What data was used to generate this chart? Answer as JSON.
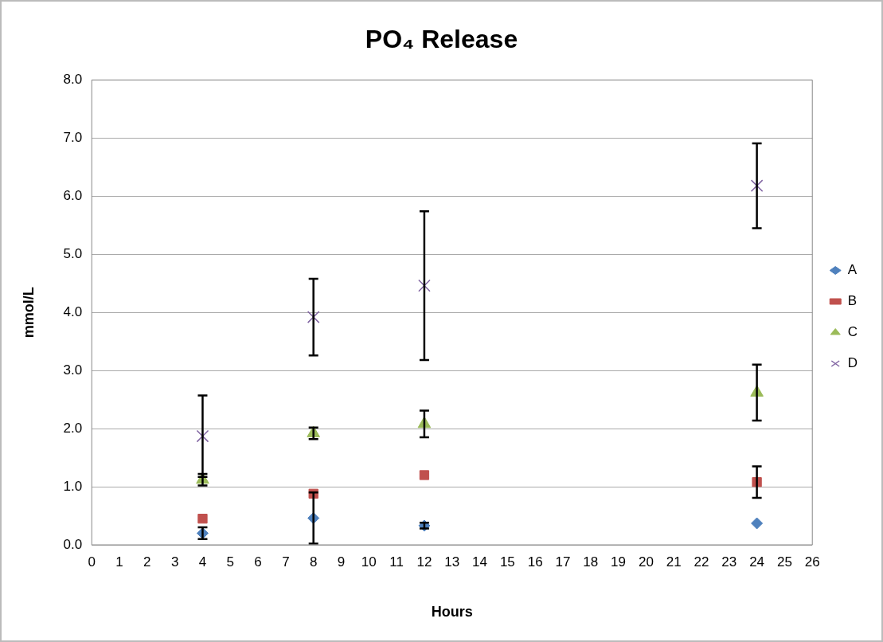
{
  "chart_data": {
    "type": "scatter",
    "title": "PO₄ Release",
    "xlabel": "Hours",
    "ylabel": "mmol/L",
    "x": [
      4,
      8,
      12,
      24
    ],
    "series": [
      {
        "name": "A",
        "color": "#4f81bd",
        "marker": "diamond",
        "values": [
          0.2,
          0.46,
          0.33,
          0.37
        ],
        "errors": [
          0.1,
          0.44,
          0.05,
          null
        ]
      },
      {
        "name": "B",
        "color": "#c0504d",
        "marker": "square",
        "values": [
          0.45,
          0.88,
          1.2,
          1.08
        ],
        "errors": [
          null,
          null,
          null,
          0.27
        ]
      },
      {
        "name": "C",
        "color": "#9bbb59",
        "marker": "triangle",
        "values": [
          1.12,
          1.92,
          2.08,
          2.62
        ],
        "errors": [
          0.1,
          0.1,
          0.23,
          0.48
        ]
      },
      {
        "name": "D",
        "color": "#8064a2",
        "marker": "cross",
        "values": [
          1.87,
          3.92,
          4.46,
          6.18
        ],
        "errors": [
          0.7,
          0.66,
          1.28,
          0.73
        ]
      }
    ],
    "xlim": [
      0,
      26
    ],
    "xticks": [
      0,
      1,
      2,
      3,
      4,
      5,
      6,
      7,
      8,
      9,
      10,
      11,
      12,
      13,
      14,
      15,
      16,
      17,
      18,
      19,
      20,
      21,
      22,
      23,
      24,
      25,
      26
    ],
    "ylim": [
      0,
      8
    ],
    "yticks": [
      {
        "value": 0,
        "label": "0.0"
      },
      {
        "value": 1,
        "label": "1.0"
      },
      {
        "value": 2,
        "label": "2.0"
      },
      {
        "value": 3,
        "label": "3.0"
      },
      {
        "value": 4,
        "label": "4.0"
      },
      {
        "value": 5,
        "label": "5.0"
      },
      {
        "value": 6,
        "label": "6.0"
      },
      {
        "value": 7,
        "label": "7.0"
      },
      {
        "value": 8,
        "label": "8.0"
      }
    ],
    "grid": "y",
    "legend": "right"
  }
}
